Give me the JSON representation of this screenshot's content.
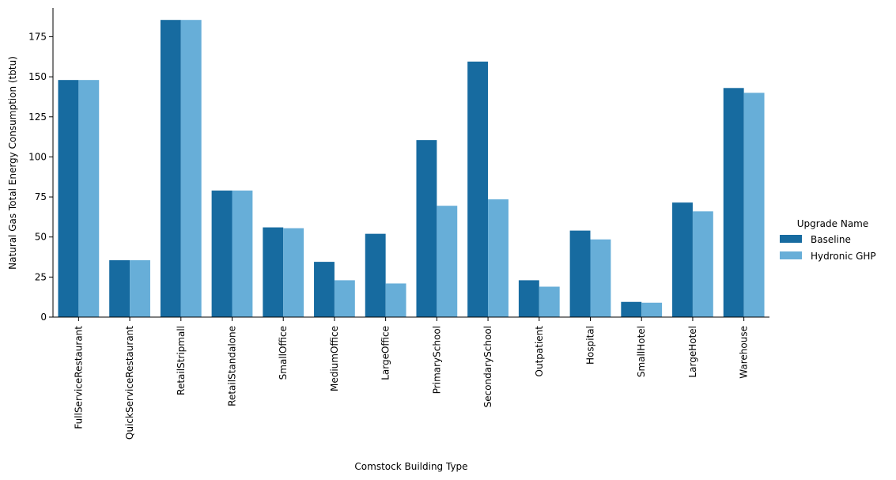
{
  "chart_data": {
    "type": "bar",
    "xlabel": "Comstock Building Type",
    "ylabel": "Natural Gas Total Energy Consumption (tbtu)",
    "ylim": [
      0,
      193
    ],
    "yticks": [
      0,
      25,
      50,
      75,
      100,
      125,
      150,
      175
    ],
    "grid": false,
    "legend": {
      "title": "Upgrade Name",
      "placement": "right"
    },
    "categories": [
      "FullServiceRestaurant",
      "QuickServiceRestaurant",
      "RetailStripmall",
      "RetailStandalone",
      "SmallOffice",
      "MediumOffice",
      "LargeOffice",
      "PrimarySchool",
      "SecondarySchool",
      "Outpatient",
      "Hospital",
      "SmallHotel",
      "LargeHotel",
      "Warehouse"
    ],
    "series": [
      {
        "name": "Baseline",
        "color": "#176ba0",
        "values": [
          148,
          35.5,
          185.5,
          79,
          56,
          34.5,
          52,
          110.5,
          159.5,
          23,
          54,
          9.5,
          71.5,
          143
        ]
      },
      {
        "name": "Hydronic GHP",
        "color": "#67aed8",
        "values": [
          148,
          35.5,
          185.5,
          79,
          55.5,
          23,
          21,
          69.5,
          73.5,
          19,
          48.5,
          9,
          66,
          140
        ]
      }
    ]
  }
}
